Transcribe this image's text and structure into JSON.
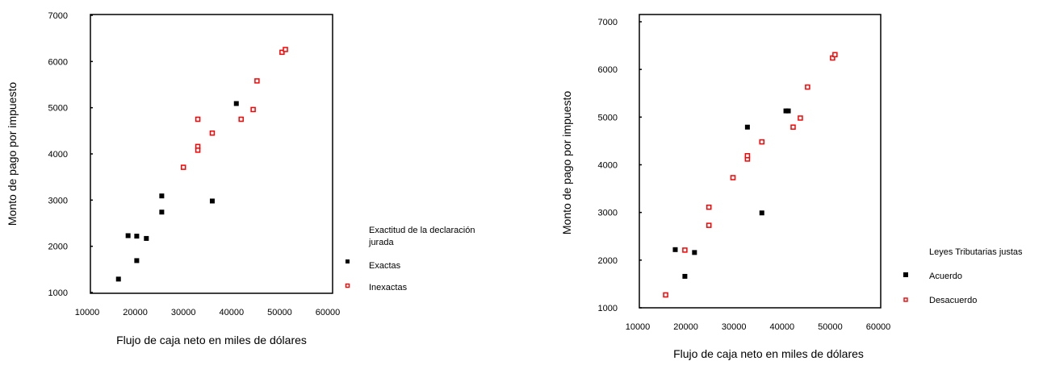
{
  "chart_data": [
    {
      "type": "scatter",
      "xlabel": "Flujo de caja neto en miles de dólares",
      "ylabel": "Monto de pago  por impuesto",
      "xlim": [
        10000,
        60000
      ],
      "ylim": [
        1000,
        7000
      ],
      "x_ticks": [
        "10000",
        "20000",
        "30000",
        "40000",
        "50000",
        "60000"
      ],
      "y_ticks": [
        "1000",
        "2000",
        "3000",
        "4000",
        "5000",
        "6000",
        "7000"
      ],
      "legend": {
        "title_lines": [
          "Exactitud de la declaración",
          "jurada"
        ],
        "placement": "right"
      },
      "series": [
        {
          "name": "Exactas",
          "color": "#000000",
          "marker": "filled-square",
          "points": [
            {
              "x": 16500,
              "y": 1290
            },
            {
              "x": 18500,
              "y": 2230
            },
            {
              "x": 20300,
              "y": 2220
            },
            {
              "x": 20300,
              "y": 1690
            },
            {
              "x": 22300,
              "y": 2170
            },
            {
              "x": 25500,
              "y": 3090
            },
            {
              "x": 25500,
              "y": 2740
            },
            {
              "x": 36000,
              "y": 2980
            },
            {
              "x": 41000,
              "y": 5090
            }
          ]
        },
        {
          "name": "Inexactas",
          "color": "#ff0000",
          "marker": "open-square",
          "points": [
            {
              "x": 30000,
              "y": 3710
            },
            {
              "x": 33000,
              "y": 4160
            },
            {
              "x": 33000,
              "y": 4080
            },
            {
              "x": 33000,
              "y": 4750
            },
            {
              "x": 36000,
              "y": 4450
            },
            {
              "x": 42000,
              "y": 4750
            },
            {
              "x": 44500,
              "y": 4960
            },
            {
              "x": 45300,
              "y": 5580
            },
            {
              "x": 50500,
              "y": 6200
            },
            {
              "x": 51200,
              "y": 6260
            }
          ]
        }
      ]
    },
    {
      "type": "scatter",
      "xlabel": "Flujo de caja neto en miles de dólares",
      "ylabel": "Monto de pago  por impuesto",
      "xlim": [
        10000,
        60000
      ],
      "ylim": [
        1000,
        7000
      ],
      "x_ticks": [
        "10000",
        "20000",
        "30000",
        "40000",
        "50000",
        "60000"
      ],
      "y_ticks": [
        "1000",
        "2000",
        "3000",
        "4000",
        "5000",
        "6000",
        "7000"
      ],
      "legend": {
        "title_lines": [
          "Leyes Tributarias justas"
        ],
        "placement": "right"
      },
      "series": [
        {
          "name": "Acuerdo",
          "color": "#000000",
          "marker": "filled-square",
          "points": [
            {
              "x": 17800,
              "y": 2220
            },
            {
              "x": 19800,
              "y": 1660
            },
            {
              "x": 21800,
              "y": 2160
            },
            {
              "x": 32800,
              "y": 4790
            },
            {
              "x": 35800,
              "y": 2990
            },
            {
              "x": 40800,
              "y": 5130
            },
            {
              "x": 41300,
              "y": 5130
            }
          ]
        },
        {
          "name": "Desacuerdo",
          "color": "#ff0000",
          "marker": "open-square",
          "points": [
            {
              "x": 15800,
              "y": 1270
            },
            {
              "x": 19800,
              "y": 2210
            },
            {
              "x": 24800,
              "y": 2730
            },
            {
              "x": 24800,
              "y": 3110
            },
            {
              "x": 29800,
              "y": 3730
            },
            {
              "x": 32800,
              "y": 4120
            },
            {
              "x": 32800,
              "y": 4190
            },
            {
              "x": 35800,
              "y": 4480
            },
            {
              "x": 42300,
              "y": 4790
            },
            {
              "x": 43800,
              "y": 4980
            },
            {
              "x": 45300,
              "y": 5630
            },
            {
              "x": 50500,
              "y": 6240
            },
            {
              "x": 51000,
              "y": 6310
            }
          ]
        }
      ]
    }
  ]
}
